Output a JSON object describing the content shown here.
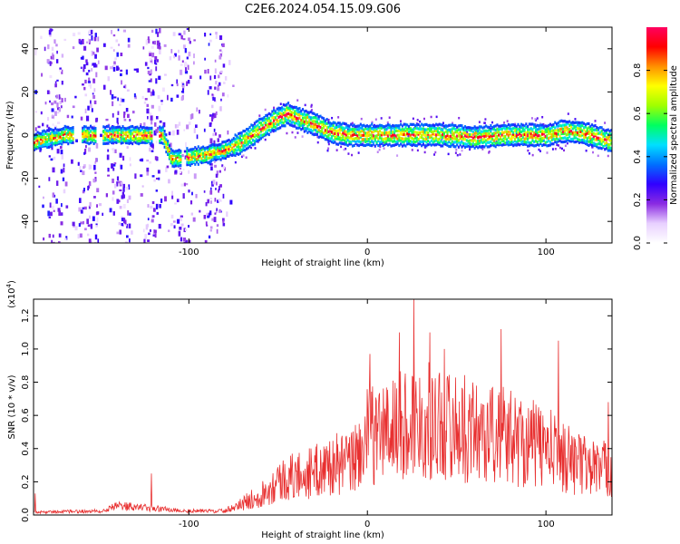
{
  "title": "C2E6.2024.054.15.09.G06",
  "chart_data": [
    {
      "type": "heatmap",
      "xlabel": "Height of straight line (km)",
      "ylabel": "Frequency (Hz)",
      "xlim": [
        -187,
        137
      ],
      "ylim": [
        -50,
        50
      ],
      "x_ticks": [
        -100,
        0,
        100
      ],
      "y_ticks": [
        -40,
        -20,
        0,
        20,
        40
      ],
      "colorbar": {
        "label": "Normalized spectral amplitude",
        "range": [
          0.0,
          1.0
        ],
        "ticks": [
          0.0,
          0.2,
          0.4,
          0.6,
          0.8
        ],
        "colors": [
          "#ffffff",
          "#e8d0ff",
          "#8a2be2",
          "#3000ff",
          "#0070ff",
          "#00e0ff",
          "#00ff60",
          "#a0ff00",
          "#ffff00",
          "#ff9000",
          "#ff0000",
          "#ff0060"
        ]
      },
      "ridge": {
        "x": [
          -187,
          -170,
          -150,
          -130,
          -115,
          -110,
          -100,
          -90,
          -80,
          -70,
          -60,
          -50,
          -45,
          -40,
          -30,
          -20,
          -10,
          0,
          20,
          40,
          60,
          80,
          100,
          110,
          120,
          137
        ],
        "y": [
          -3,
          0,
          0,
          0,
          0,
          -11,
          -10,
          -9,
          -7,
          -3,
          3,
          8,
          10,
          8,
          5,
          1,
          0,
          0,
          0,
          0,
          -1,
          0,
          0,
          2,
          1,
          -3
        ]
      }
    },
    {
      "type": "line",
      "xlabel": "Height of straight line (km)",
      "ylabel": "SNR (10 * v/v)",
      "y_exponent_label": "(x10",
      "y_exponent": "4",
      "xlim": [
        -187,
        137
      ],
      "ylim": [
        0.0,
        1.3
      ],
      "x_ticks": [
        -100,
        0,
        100
      ],
      "y_ticks": [
        0.0,
        0.2,
        0.4,
        0.6,
        0.8,
        1.0,
        1.2
      ],
      "color": "#e83030",
      "envelope": {
        "x": [
          -187,
          -150,
          -140,
          -120,
          -100,
          -80,
          -70,
          -60,
          -50,
          -40,
          -30,
          -20,
          -10,
          -5,
          0,
          10,
          20,
          30,
          40,
          60,
          80,
          100,
          120,
          137
        ],
        "y": [
          0.02,
          0.03,
          0.07,
          0.05,
          0.03,
          0.03,
          0.1,
          0.18,
          0.3,
          0.35,
          0.38,
          0.45,
          0.45,
          0.55,
          0.7,
          0.75,
          0.8,
          0.85,
          0.82,
          0.75,
          0.7,
          0.6,
          0.45,
          0.4
        ]
      },
      "peaks": [
        {
          "x": 1.5,
          "y": 0.97
        },
        {
          "x": 26,
          "y": 1.3
        },
        {
          "x": 18,
          "y": 1.1
        },
        {
          "x": 35,
          "y": 1.1
        },
        {
          "x": 43,
          "y": 1.0
        },
        {
          "x": 75,
          "y": 1.12
        },
        {
          "x": 107,
          "y": 1.05
        },
        {
          "x": 135,
          "y": 0.68
        },
        {
          "x": -121,
          "y": 0.25
        },
        {
          "x": -186,
          "y": 0.13
        }
      ]
    }
  ]
}
